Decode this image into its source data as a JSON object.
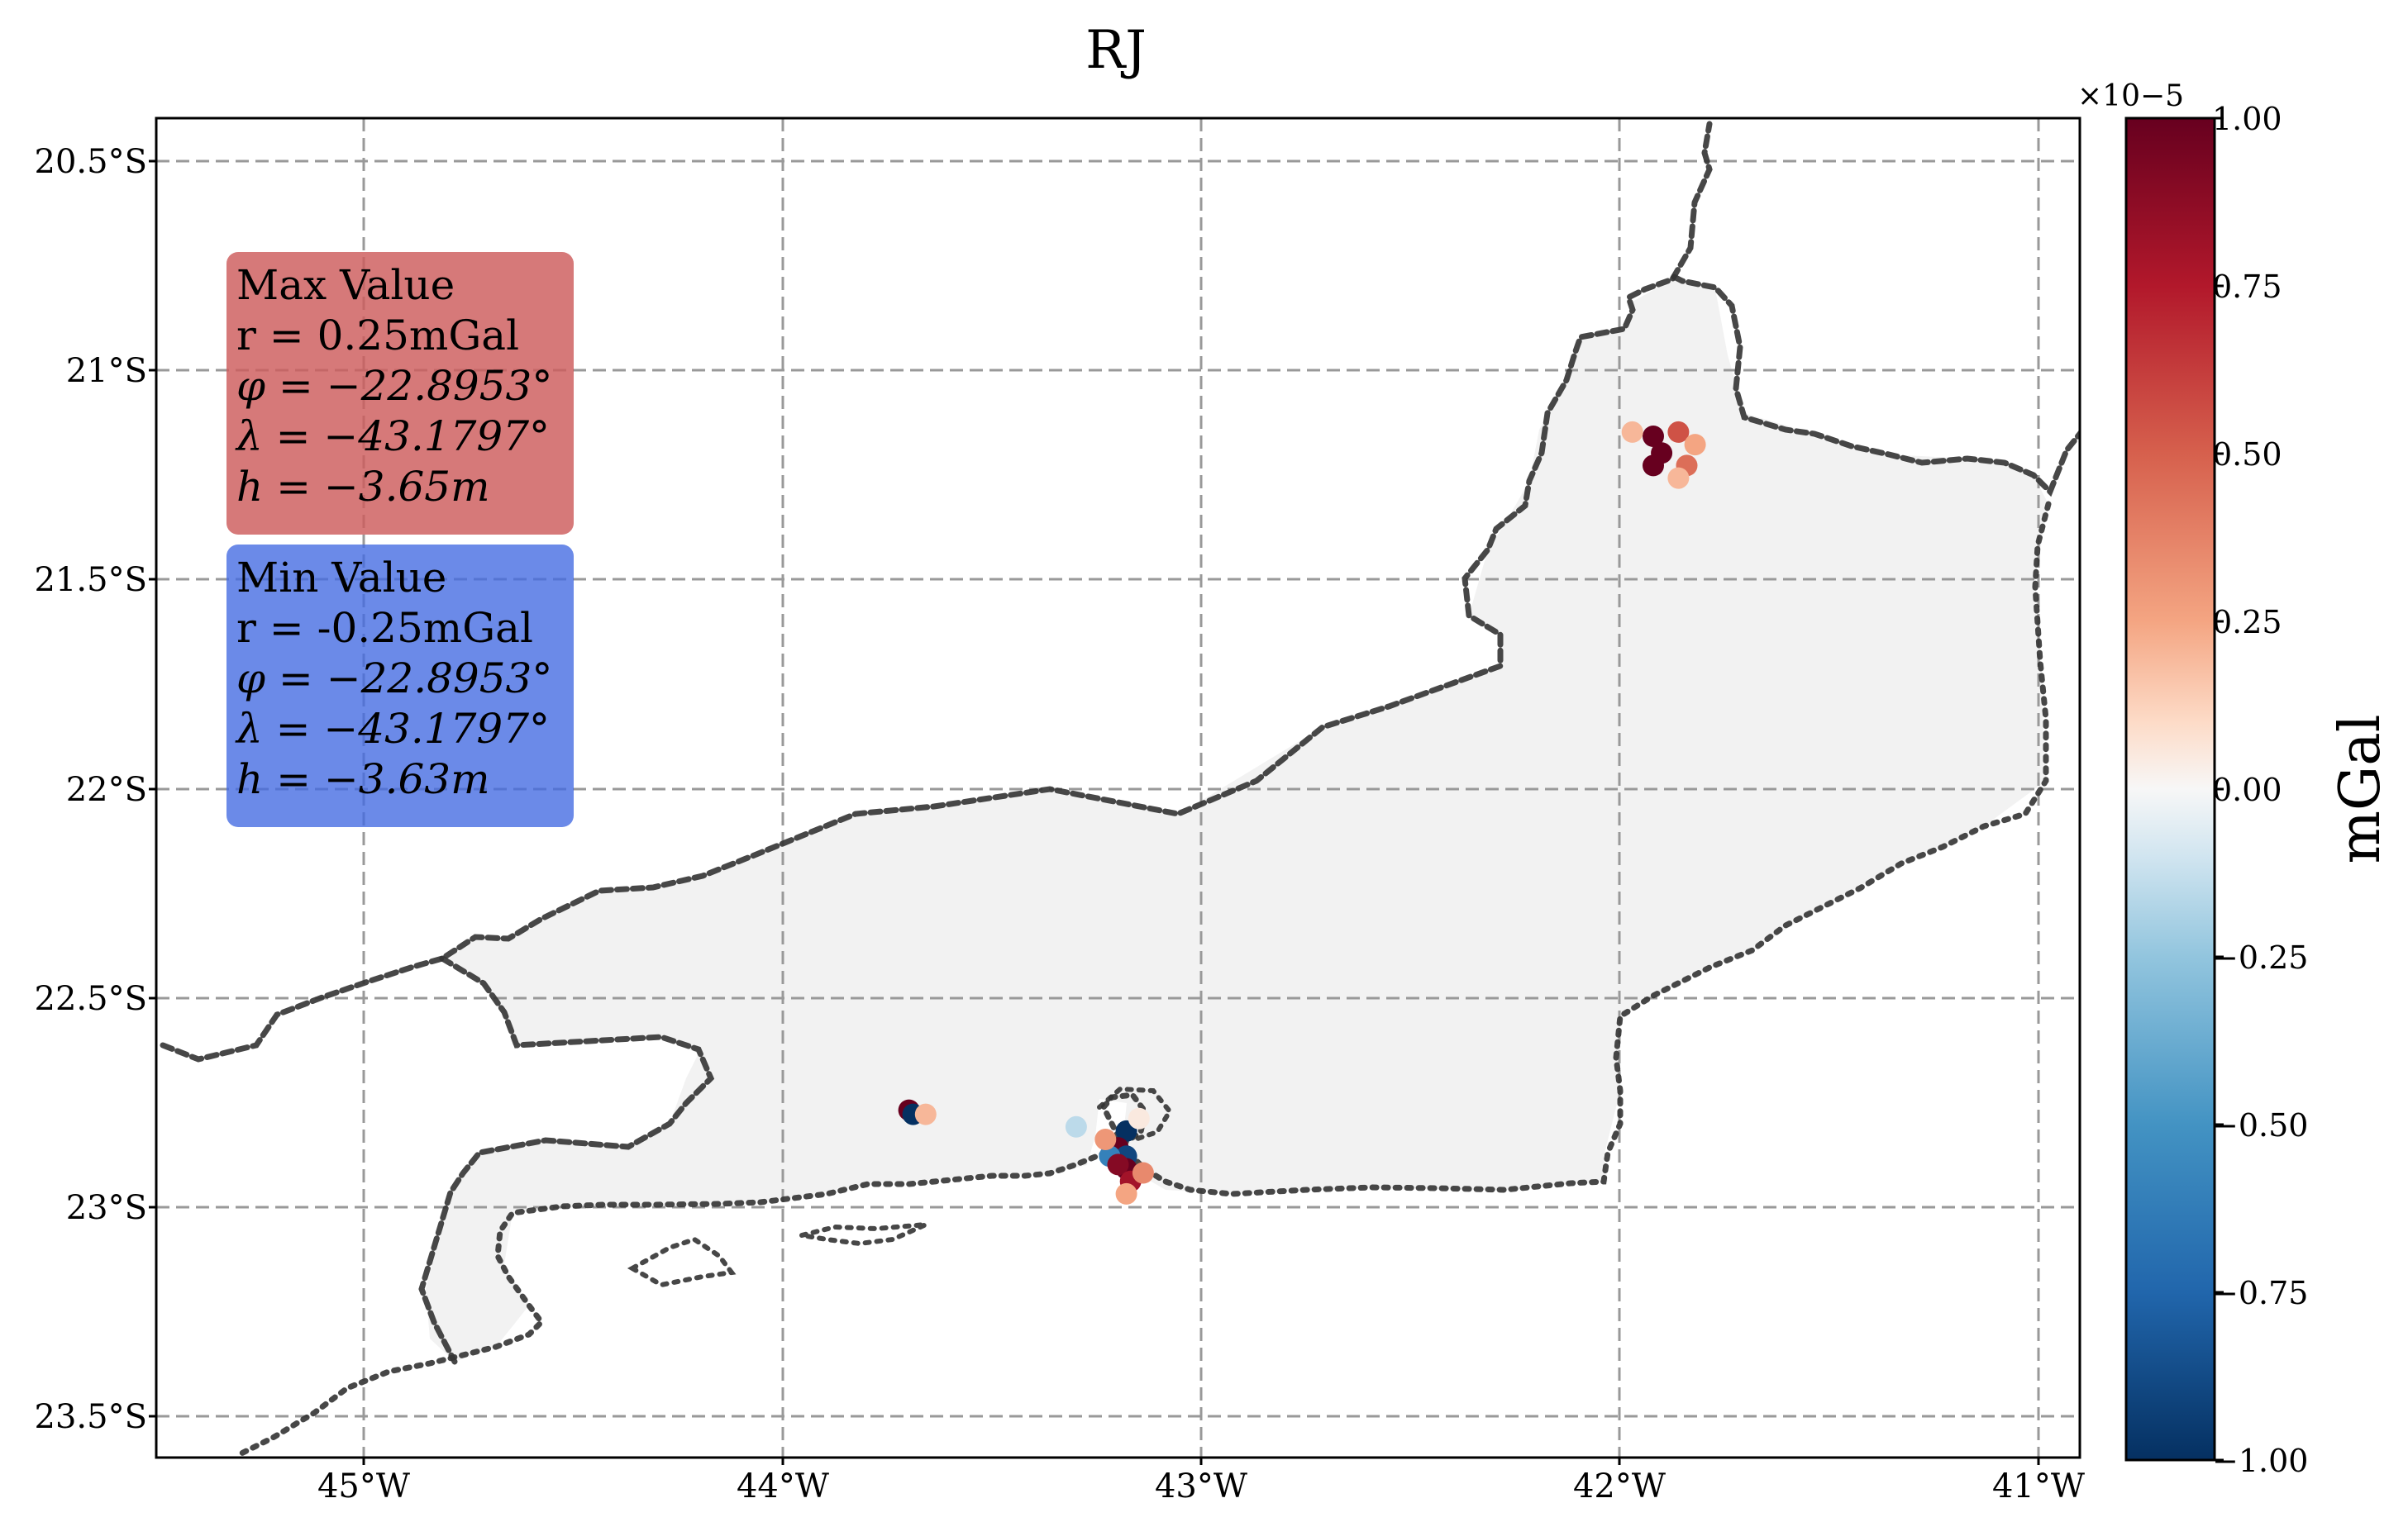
{
  "chart_data": {
    "type": "scatter",
    "title": "RJ",
    "x_ticks": [
      "45°W",
      "44°W",
      "43°W",
      "42°W",
      "41°W"
    ],
    "x_tick_values": [
      -45,
      -44,
      -43,
      -42,
      -41
    ],
    "y_ticks": [
      "20.5°S",
      "21°S",
      "21.5°S",
      "22°S",
      "22.5°S",
      "23°S",
      "23.5°S"
    ],
    "y_tick_values": [
      -20.5,
      -21,
      -21.5,
      -22,
      -22.5,
      -23,
      -23.5
    ],
    "xlim": [
      -45.5,
      -40.9
    ],
    "ylim": [
      -23.6,
      -20.4
    ],
    "grid": true,
    "colorbar": {
      "label": "mGal",
      "multiplier": "×10−5",
      "ticks": [
        "1.00",
        "0.75",
        "0.50",
        "0.25",
        "0.00",
        "−0.25",
        "−0.50",
        "−0.75",
        "−1.00"
      ],
      "range": [
        -1.0,
        1.0
      ],
      "colormap": "RdBu_r",
      "colors": {
        "max": "#67001f",
        "mid": "#f7f7f7",
        "min": "#053061"
      }
    },
    "annotations": {
      "max": {
        "title": "Max Value",
        "r": "r = 0.25mGal",
        "phi": "φ = −22.8953°",
        "lambda": "λ = −43.1797°",
        "h": "h = −3.65m",
        "color": "#cd5c5c"
      },
      "min": {
        "title": "Min Value",
        "r": "r = -0.25mGal",
        "phi": "φ = −22.8953°",
        "lambda": "λ = −43.1797°",
        "h": "h = −3.63m",
        "color": "#4169e1"
      }
    },
    "highlight_points": [
      {
        "lon": -41.92,
        "lat": -21.16,
        "value": 1.0
      },
      {
        "lon": -41.9,
        "lat": -21.2,
        "value": 1.0
      },
      {
        "lon": -41.92,
        "lat": -21.23,
        "value": 1.0
      },
      {
        "lon": -41.86,
        "lat": -21.15,
        "value": 0.55
      },
      {
        "lon": -41.82,
        "lat": -21.18,
        "value": 0.25
      },
      {
        "lon": -41.84,
        "lat": -21.23,
        "value": 0.45
      },
      {
        "lon": -41.86,
        "lat": -21.26,
        "value": 0.2
      },
      {
        "lon": -41.97,
        "lat": -21.15,
        "value": 0.2
      },
      {
        "lon": -43.7,
        "lat": -22.77,
        "value": 1.0
      },
      {
        "lon": -43.69,
        "lat": -22.78,
        "value": -1.0
      },
      {
        "lon": -43.66,
        "lat": -22.78,
        "value": 0.2
      },
      {
        "lon": -43.3,
        "lat": -22.81,
        "value": -0.15
      },
      {
        "lon": -43.18,
        "lat": -22.82,
        "value": -1.0
      },
      {
        "lon": -43.2,
        "lat": -22.86,
        "value": 1.0
      },
      {
        "lon": -43.18,
        "lat": -22.88,
        "value": -0.9
      },
      {
        "lon": -43.22,
        "lat": -22.88,
        "value": -0.6
      },
      {
        "lon": -43.18,
        "lat": -22.91,
        "value": 1.0
      },
      {
        "lon": -43.2,
        "lat": -22.9,
        "value": 0.9
      },
      {
        "lon": -43.17,
        "lat": -22.94,
        "value": 0.8
      },
      {
        "lon": -43.14,
        "lat": -22.92,
        "value": 0.35
      },
      {
        "lon": -43.18,
        "lat": -22.97,
        "value": 0.25
      },
      {
        "lon": -43.23,
        "lat": -22.84,
        "value": 0.3
      },
      {
        "lon": -43.15,
        "lat": -22.79,
        "value": 0.05
      }
    ]
  }
}
